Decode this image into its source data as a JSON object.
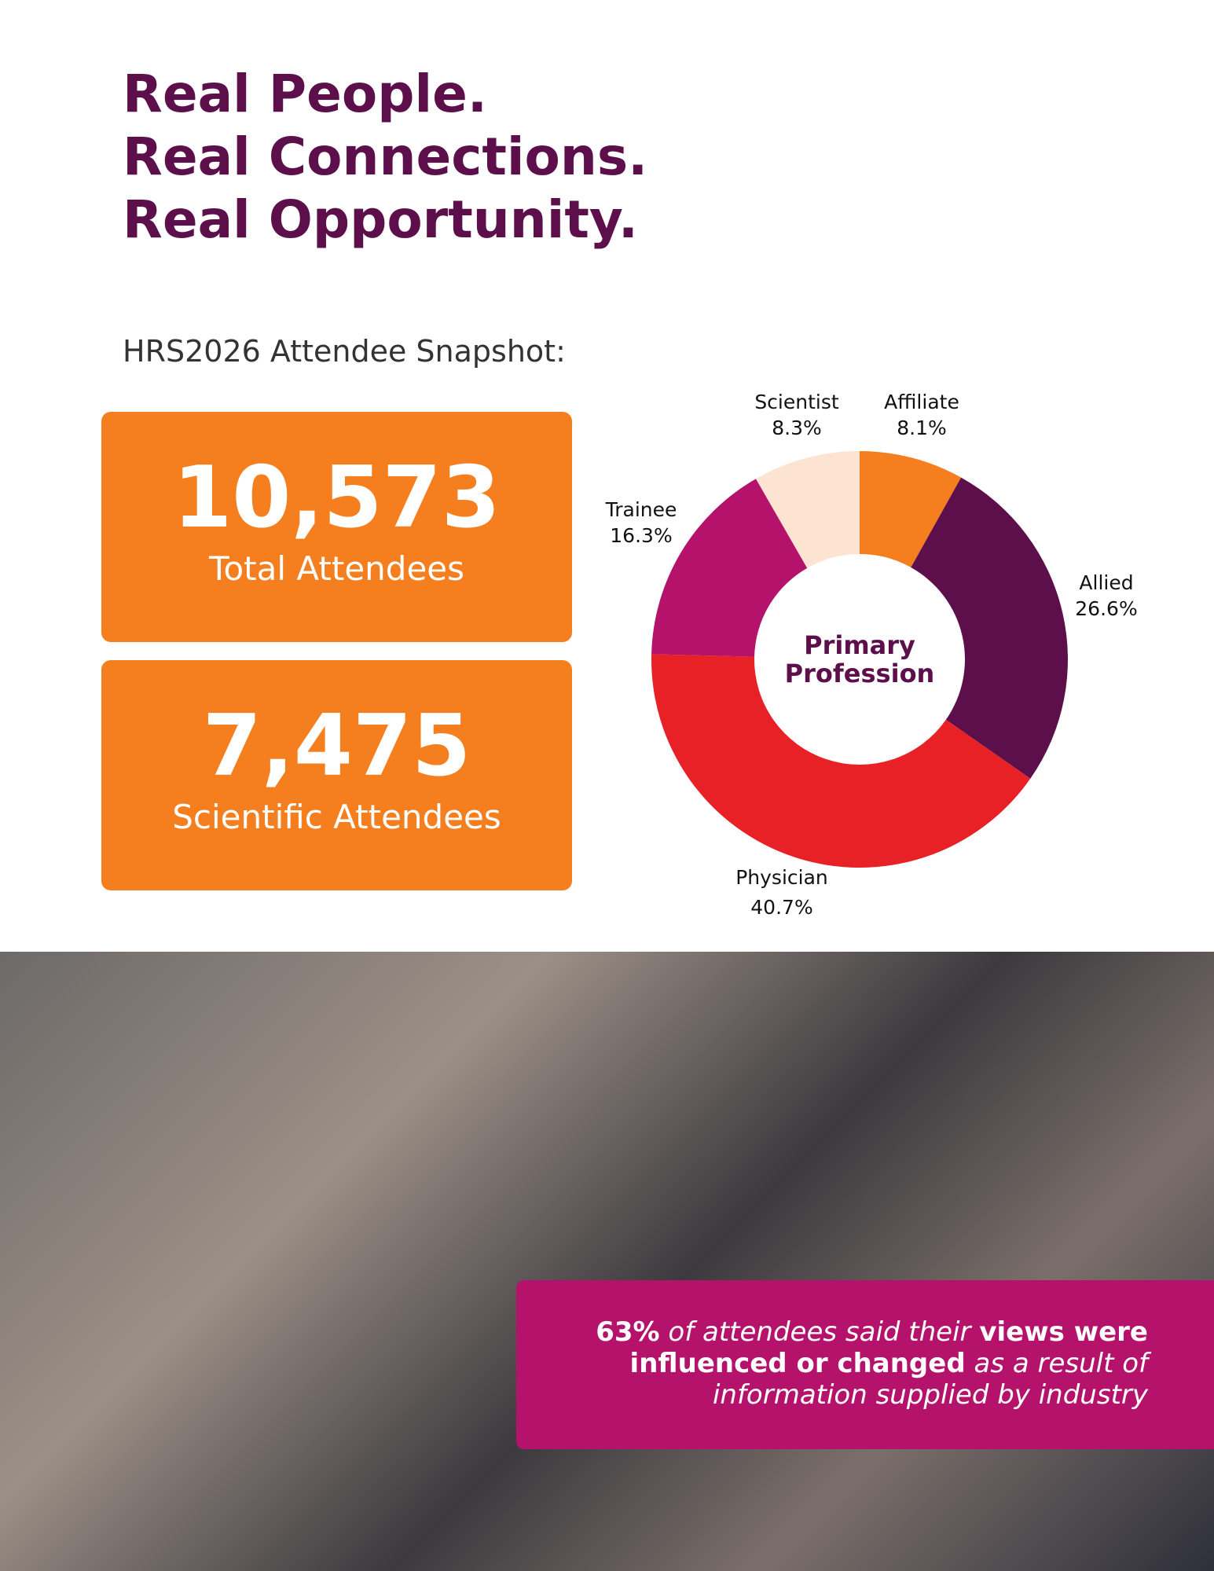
{
  "header": {
    "title_lines": [
      "Real People.",
      "Real Connections.",
      "Real Opportunity."
    ],
    "subtitle": "HRS2026 Attendee Snapshot:"
  },
  "stats": [
    {
      "number": "10,573",
      "label": "Total Attendees"
    },
    {
      "number": "7,475",
      "label": "Scientific Attendees"
    }
  ],
  "chart_data": {
    "type": "donut",
    "center_label": [
      "Primary",
      "Profession"
    ],
    "categories": [
      "Affiliate",
      "Allied",
      "Physician",
      "Trainee",
      "Scientist"
    ],
    "values": [
      8.1,
      26.6,
      40.7,
      16.3,
      8.3
    ],
    "value_labels": [
      "8.1%",
      "26.6%",
      "40.7%",
      "16.3%",
      "8.3%"
    ],
    "colors": [
      "#f57f1e",
      "#5c0f4a",
      "#e82127",
      "#b5126b",
      "#fde3d1"
    ]
  },
  "callout": {
    "runs": [
      {
        "text": "63%",
        "bold": true
      },
      {
        "text": " of attendees said their ",
        "bold": false
      },
      {
        "text": "views were influenced or changed",
        "bold": true
      },
      {
        "text": " as a result of information supplied by industry",
        "bold": false
      }
    ]
  }
}
